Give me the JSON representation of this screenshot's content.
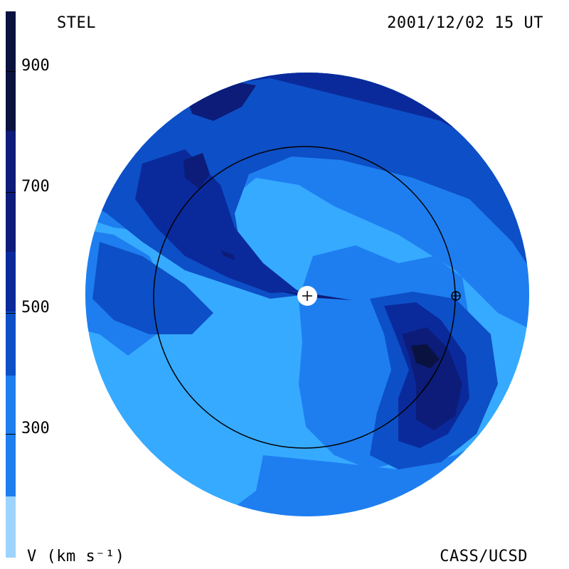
{
  "header": {
    "observatory": "STEL",
    "timestamp": "2001/12/02 15 UT"
  },
  "footer": {
    "units_label": "V (km s⁻¹)",
    "credit": "CASS/UCSD"
  },
  "colorbar": {
    "ticks": [
      "900",
      "700",
      "500",
      "300"
    ],
    "colors": [
      "#0a1240",
      "#0c1c78",
      "#0a2a9c",
      "#0d4fc6",
      "#1e7ef0",
      "#36aaff",
      "#9dd3ff"
    ]
  },
  "map": {
    "colors": {
      "v300": "#36aaff",
      "v400": "#1e7ef0",
      "v500": "#0d4fc6",
      "v600": "#0a2a9c",
      "v700": "#0c1c78",
      "v800": "#0a1240"
    },
    "markers": [
      "sun-marker",
      "earth-marker",
      "earth-orbit"
    ]
  }
}
